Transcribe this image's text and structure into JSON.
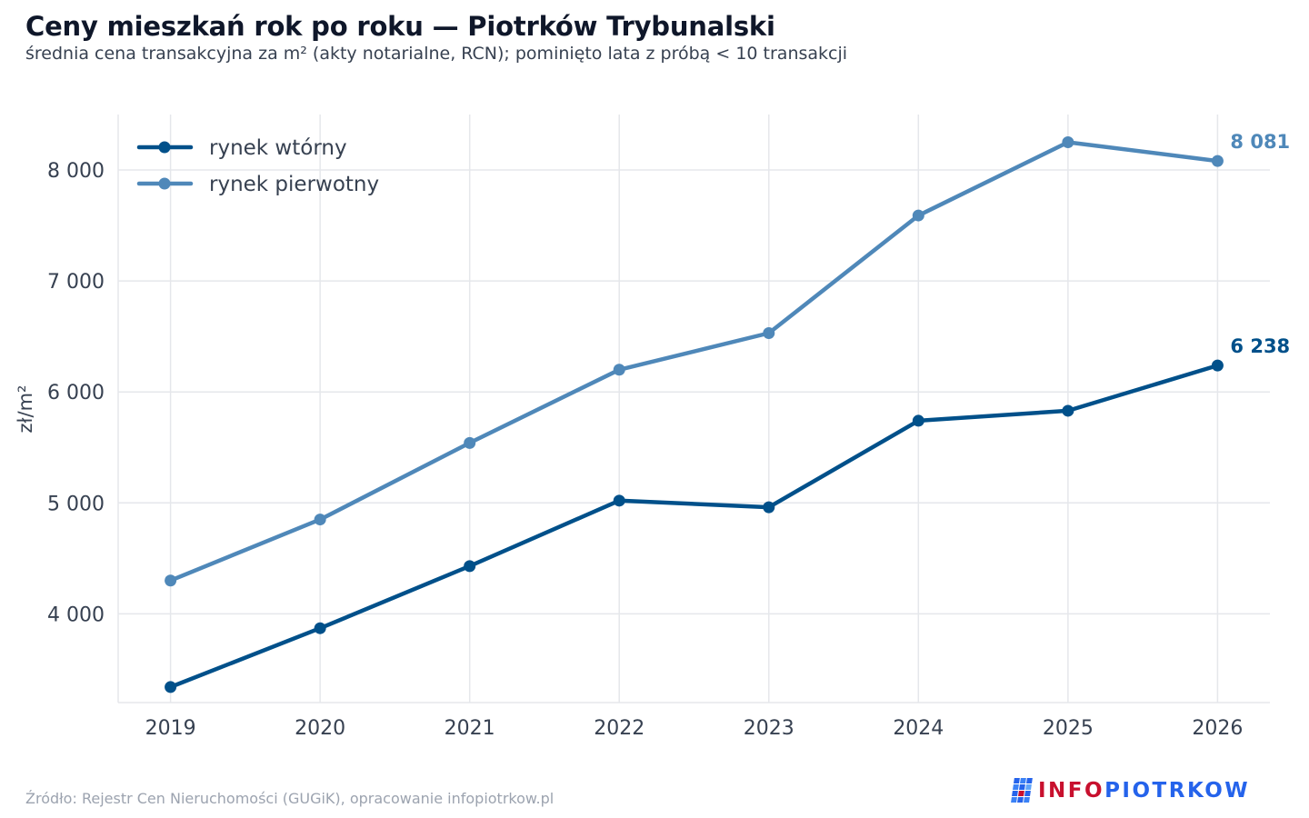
{
  "title": "Ceny mieszkań rok po roku — Piotrków Trybunalski",
  "subtitle": "średnia cena transakcyjna za m² (akty notarialne, RCN); pominięto lata z próbą < 10 transakcji",
  "source": "Źródło: Rejestr Cen Nieruchomości (GUGiK), opracowanie infopiotrkow.pl",
  "brand": {
    "part1": "INFO",
    "part2": "PIOTRKOW",
    "icon": "brand-grid-icon"
  },
  "colors": {
    "secondary": "#00508a",
    "primary": "#4f88b9",
    "grid": "#e5e7eb",
    "axis_text": "#374151",
    "brand_red": "#c8102e",
    "brand_blue": "#2563eb"
  },
  "chart_data": {
    "type": "line",
    "x": [
      2019,
      2020,
      2021,
      2022,
      2023,
      2024,
      2025,
      2026
    ],
    "xlim": [
      2018.65,
      2026.35
    ],
    "ylim": [
      3200,
      8500
    ],
    "yticks": [
      4000,
      5000,
      6000,
      7000,
      8000
    ],
    "ytick_labels": [
      "4 000",
      "5 000",
      "6 000",
      "7 000",
      "8 000"
    ],
    "ylabel": "zł/m²",
    "xlabel": "",
    "grid": true,
    "legend_position": "top-left",
    "series": [
      {
        "name": "rynek wtórny",
        "color": "#00508a",
        "values": [
          3340,
          3870,
          4430,
          5020,
          4960,
          5740,
          5830,
          6238
        ],
        "end_label": "6 238"
      },
      {
        "name": "rynek pierwotny",
        "color": "#4f88b9",
        "values": [
          4300,
          4850,
          5540,
          6200,
          6530,
          7590,
          8250,
          8081
        ],
        "end_label": "8 081"
      }
    ]
  }
}
